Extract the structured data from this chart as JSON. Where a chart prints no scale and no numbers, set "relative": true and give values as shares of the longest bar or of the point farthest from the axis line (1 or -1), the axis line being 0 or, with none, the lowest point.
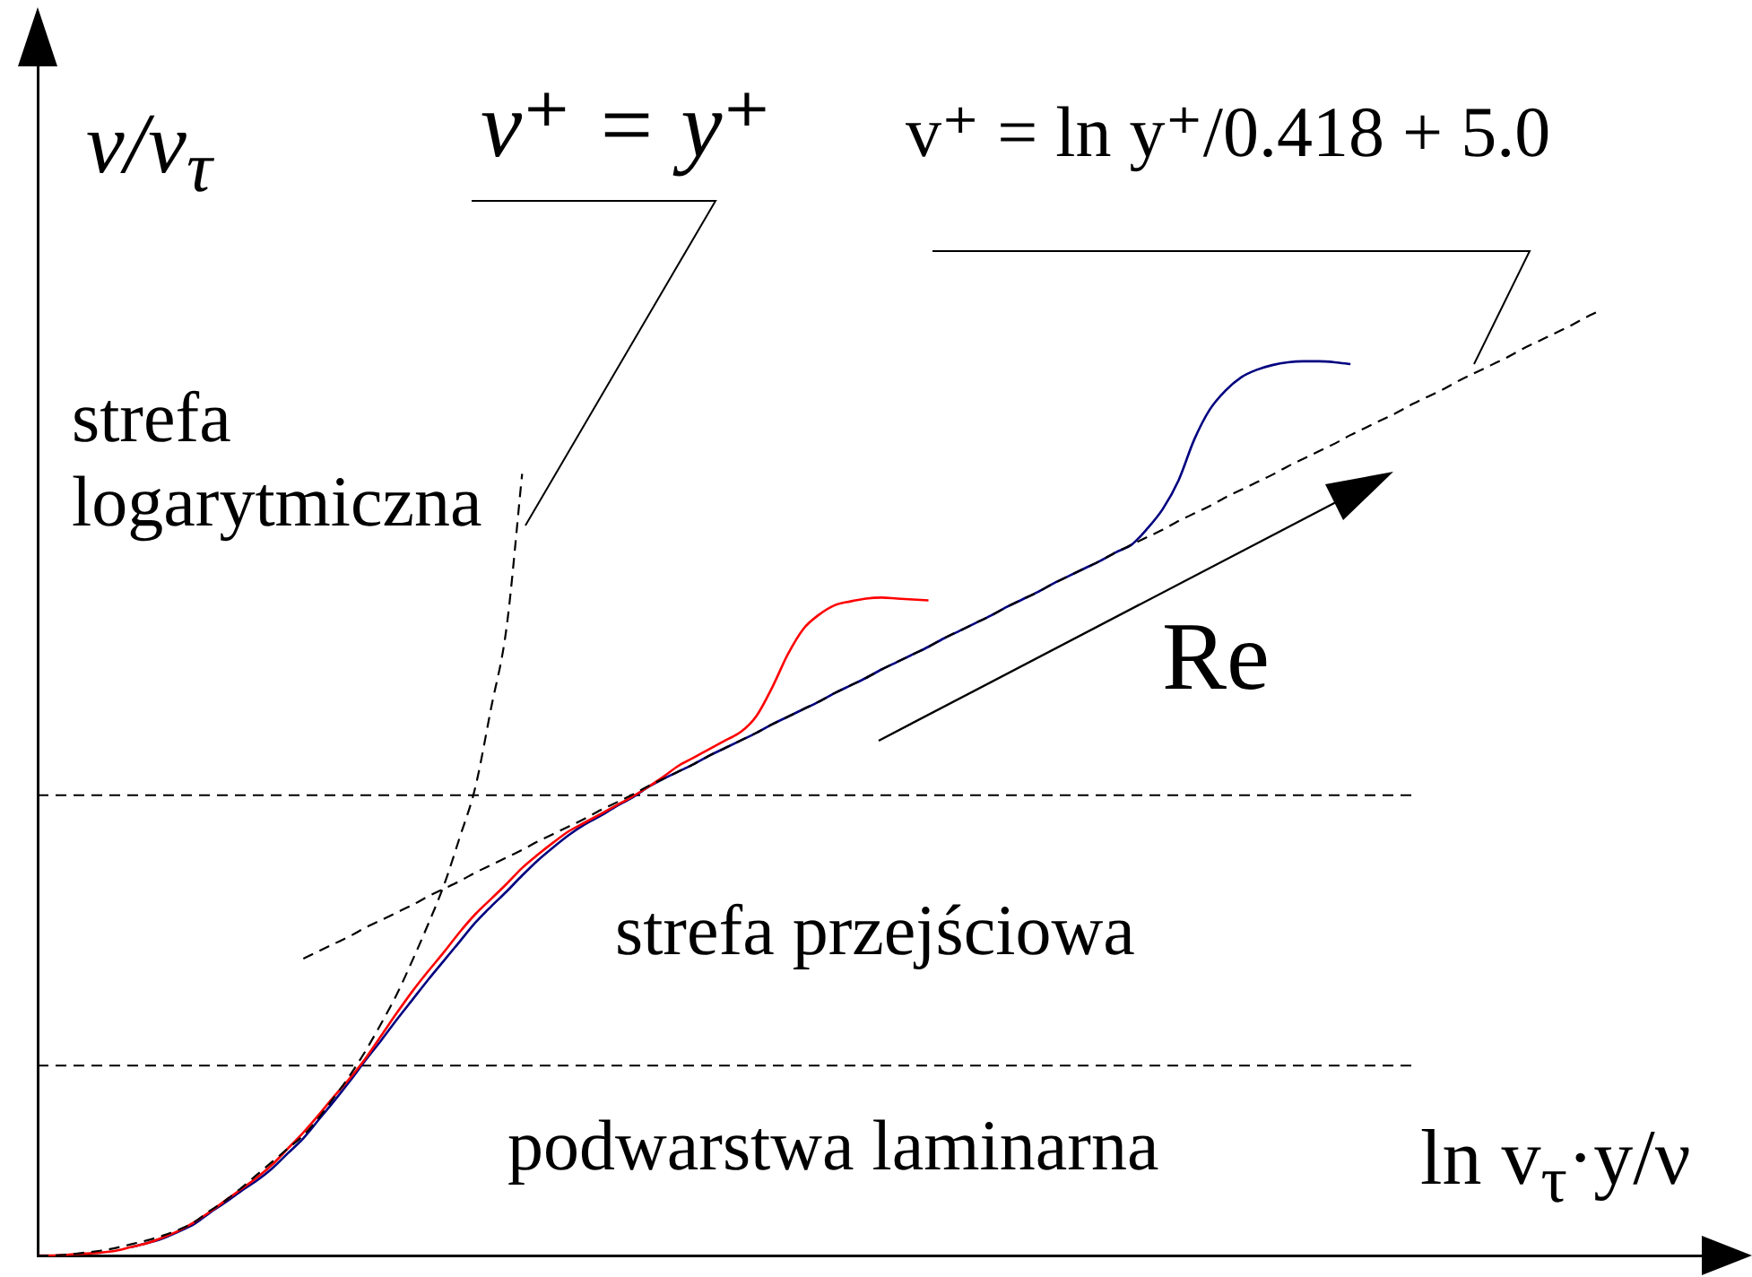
{
  "chart_data": {
    "type": "line",
    "relative": true,
    "xlabel": "ln v$_{τ}$·y/ν",
    "ylabel": "v/v$_{τ}$",
    "categories": [
      null,
      null,
      null,
      null,
      null,
      null,
      null,
      null,
      null,
      null,
      null,
      null,
      null,
      null,
      null,
      null,
      null,
      null,
      null,
      null,
      null,
      null,
      null,
      null,
      null,
      null,
      null,
      null,
      null,
      null,
      null,
      null,
      null,
      null,
      null,
      null,
      null,
      null,
      null,
      null,
      null,
      null,
      null,
      null,
      null,
      null,
      null,
      null,
      null,
      null,
      null,
      null,
      null,
      null,
      null,
      null,
      null,
      null,
      null,
      null,
      null,
      null,
      null,
      null,
      null,
      null,
      null,
      null,
      null,
      null,
      null,
      null,
      null,
      null,
      null,
      null,
      null,
      null,
      null,
      null,
      null,
      null,
      null,
      null,
      null,
      null,
      null,
      null,
      null,
      null,
      null,
      null,
      null,
      null,
      null,
      null,
      null,
      null,
      null,
      null,
      null
    ],
    "series": [
      {
        "color": "#000000",
        "line_style": "dashed",
        "values": [
          0,
          0,
          0.001,
          0.003,
          0.005,
          0.008,
          0.012,
          0.016,
          0.021,
          0.027,
          0.035,
          0.047,
          0.058,
          0.071,
          0.085,
          0.099,
          0.113,
          0.127,
          0.146,
          0.168,
          0.191,
          0.217,
          0.246,
          0.277,
          0.313,
          0.351,
          0.392,
          0.442,
          0.495,
          0.578,
          0.664,
          0.827,
          null,
          null,
          null,
          null,
          null,
          null,
          null,
          null,
          null,
          null,
          null,
          null,
          null,
          null,
          null,
          null,
          null,
          null,
          null,
          null,
          null,
          null,
          null,
          null,
          null,
          null,
          null,
          null,
          null,
          null,
          null,
          null,
          null,
          null,
          null,
          null,
          null,
          null,
          null,
          null,
          null,
          null,
          null,
          null,
          null,
          null,
          null,
          null,
          null,
          null,
          null,
          null,
          null,
          null,
          null,
          null,
          null,
          null,
          null,
          null,
          null,
          null,
          null,
          null,
          null,
          null,
          null,
          null,
          null
        ]
      },
      {
        "color": "#000000",
        "line_style": "dashed",
        "values": [
          null,
          null,
          null,
          null,
          null,
          null,
          null,
          null,
          null,
          null,
          null,
          null,
          null,
          null,
          null,
          null,
          null,
          0.314,
          0.322,
          0.33,
          0.338,
          0.347,
          0.355,
          0.363,
          0.371,
          0.38,
          0.388,
          0.396,
          0.405,
          0.413,
          0.421,
          0.429,
          0.438,
          0.446,
          0.454,
          0.462,
          0.471,
          0.479,
          0.487,
          0.496,
          0.504,
          0.512,
          0.52,
          0.529,
          0.537,
          0.545,
          0.553,
          0.562,
          0.57,
          0.578,
          0.586,
          0.595,
          0.603,
          0.611,
          0.62,
          0.628,
          0.636,
          0.644,
          0.653,
          0.661,
          0.669,
          0.677,
          0.686,
          0.694,
          0.702,
          0.711,
          0.719,
          0.727,
          0.735,
          0.744,
          0.752,
          0.76,
          0.768,
          0.777,
          0.785,
          0.793,
          0.802,
          0.81,
          0.818,
          0.826,
          0.835,
          0.843,
          0.851,
          0.859,
          0.868,
          0.876,
          0.884,
          0.892,
          0.901,
          0.909,
          0.917,
          0.926,
          0.934,
          0.942,
          0.95,
          0.959,
          0.967,
          0.975,
          0.983,
          0.992,
          1
        ]
      },
      {
        "color": "#ff0000",
        "line_style": "solid",
        "values": [
          0,
          0,
          0.001,
          0.002,
          0.003,
          0.005,
          0.009,
          0.013,
          0.019,
          0.026,
          0.035,
          0.046,
          0.058,
          0.07,
          0.082,
          0.096,
          0.113,
          0.13,
          0.149,
          0.169,
          0.188,
          0.209,
          0.233,
          0.257,
          0.28,
          0.301,
          0.321,
          0.342,
          0.361,
          0.377,
          0.393,
          0.41,
          0.424,
          0.437,
          0.449,
          0.458,
          0.467,
          0.476,
          0.485,
          0.495,
          0.506,
          0.518,
          0.527,
          0.536,
          0.545,
          0.554,
          0.571,
          0.601,
          0.636,
          0.663,
          0.678,
          0.688,
          0.692,
          0.695,
          0.696,
          0.695,
          0.694,
          0.693,
          null,
          null,
          null,
          null,
          null,
          null,
          null,
          null,
          null,
          null,
          null,
          null,
          null,
          null,
          null,
          null,
          null,
          null,
          null,
          null,
          null,
          null,
          null,
          null,
          null,
          null,
          null,
          null,
          null,
          null,
          null,
          null,
          null,
          null,
          null,
          null,
          null,
          null,
          null,
          null,
          null,
          null,
          null
        ]
      },
      {
        "color": "#000080",
        "line_style": "solid",
        "values": [
          null,
          null,
          null,
          null,
          null,
          null,
          0.009,
          0.013,
          0.018,
          0.025,
          0.033,
          0.045,
          0.056,
          0.068,
          0.079,
          0.092,
          0.108,
          0.124,
          0.144,
          0.164,
          0.185,
          0.207,
          0.228,
          0.25,
          0.271,
          0.292,
          0.312,
          0.332,
          0.352,
          0.369,
          0.385,
          0.402,
          0.418,
          0.432,
          0.445,
          0.456,
          0.465,
          0.475,
          0.484,
          0.495,
          0.504,
          0.512,
          0.52,
          0.529,
          0.537,
          0.545,
          0.553,
          0.562,
          0.57,
          0.578,
          0.586,
          0.595,
          0.603,
          0.611,
          0.62,
          0.628,
          0.636,
          0.644,
          0.653,
          0.661,
          0.669,
          0.677,
          0.686,
          0.694,
          0.702,
          0.711,
          0.719,
          0.727,
          0.735,
          0.744,
          0.752,
          0.769,
          0.79,
          0.82,
          0.863,
          0.895,
          0.915,
          0.929,
          0.937,
          0.942,
          0.945,
          0.946,
          0.946,
          0.945,
          0.943,
          null,
          null,
          null,
          null,
          null,
          null,
          null,
          null,
          null,
          null,
          null,
          null,
          null,
          null,
          null,
          null
        ]
      }
    ],
    "ref_lines": [
      {
        "axis": "y",
        "value": 0.487,
        "color": "#000000",
        "line_style": "dashed"
      },
      {
        "axis": "y",
        "value": 0.201,
        "color": "#000000",
        "line_style": "dashed"
      }
    ],
    "annotations": [
      "v⁺ = y⁺",
      "v⁺ = ln y⁺/0.418 + 5.0",
      "strefa logarytmiczna",
      "Re",
      "strefa przejściowa",
      "podwarstwa laminarna"
    ],
    "grid": false,
    "legend": false,
    "marker": "none"
  }
}
